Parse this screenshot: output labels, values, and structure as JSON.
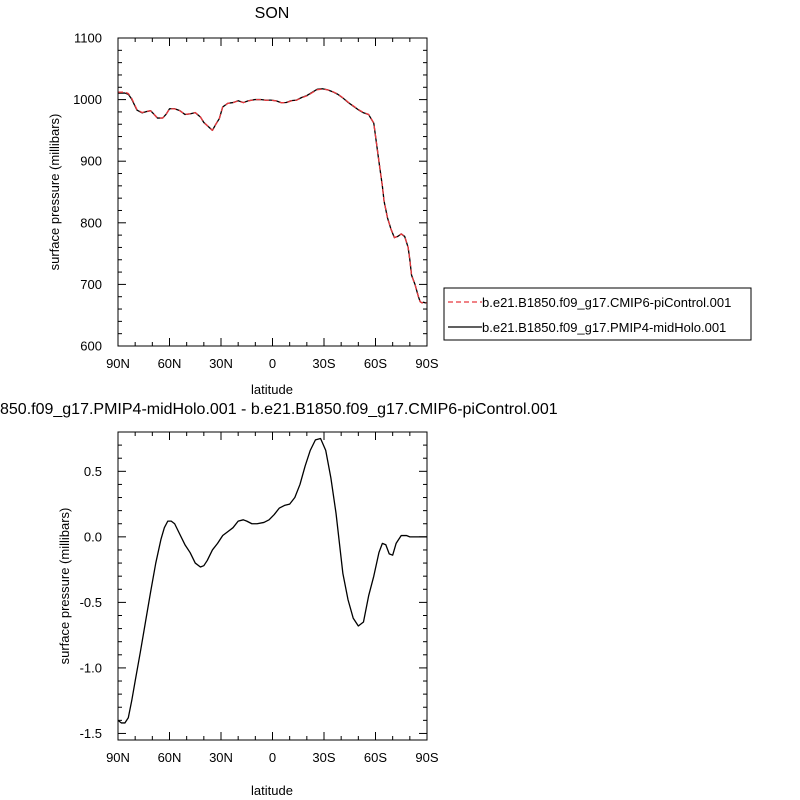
{
  "chart_data": [
    {
      "type": "line",
      "title": "SON",
      "xlabel": "latitude",
      "ylabel": "surface pressure (millibars)",
      "xlim": [
        90,
        -90
      ],
      "ylim": [
        600,
        1100
      ],
      "xticks": [
        90,
        60,
        30,
        0,
        -30,
        -60,
        -90
      ],
      "xtick_labels": [
        "90N",
        "60N",
        "30N",
        "0",
        "30S",
        "60S",
        "90S"
      ],
      "yticks": [
        600,
        700,
        800,
        900,
        1000,
        1100
      ],
      "ytick_labels": [
        "600",
        "700",
        "800",
        "900",
        "1000",
        "1100"
      ],
      "legend": {
        "placement": "right",
        "entries": [
          {
            "label": "b.e21.B1850.f09_g17.CMIP6-piControl.001",
            "color": "#e8383d",
            "style": "dashed"
          },
          {
            "label": "b.e21.B1850.f09_g17.PMIP4-midHolo.001",
            "color": "#000000",
            "style": "solid"
          }
        ]
      },
      "series": [
        {
          "name": "b.e21.B1850.f09_g17.CMIP6-piControl.001",
          "color": "#e8383d",
          "style": "dashed",
          "x": [
            90,
            86,
            84,
            82,
            79,
            76,
            73,
            71,
            69,
            67,
            64,
            62,
            60,
            57,
            54,
            51,
            48,
            45,
            42,
            40,
            38,
            35,
            33,
            31,
            29,
            26,
            23,
            20,
            17,
            14,
            10,
            7,
            4,
            1,
            -2,
            -5,
            -8,
            -11,
            -14,
            -17,
            -20,
            -23,
            -26,
            -29,
            -32,
            -35,
            -38,
            -41,
            -44,
            -47,
            -50,
            -53,
            -56,
            -59,
            -62,
            -64,
            -65,
            -67,
            -69,
            -71,
            -73,
            -75,
            -77,
            -79,
            -80,
            -81,
            -83,
            -84,
            -85,
            -86,
            -87,
            -88,
            -89,
            -90
          ],
          "y": [
            1012,
            1012,
            1010,
            1002,
            984,
            979,
            981,
            982,
            976,
            970,
            970,
            976,
            985,
            985,
            982,
            976,
            977,
            979,
            972,
            963,
            958,
            950,
            960,
            969,
            988,
            994,
            995,
            998,
            995,
            998,
            1000,
            1000,
            999,
            999,
            998,
            995,
            995,
            998,
            999,
            1003,
            1006,
            1011,
            1016,
            1017,
            1016,
            1013,
            1009,
            1003,
            996,
            990,
            984,
            979,
            976,
            962,
            900,
            860,
            835,
            808,
            790,
            776,
            778,
            782,
            778,
            760,
            740,
            715,
            700,
            690,
            680,
            672,
            670,
            671,
            670,
            670
          ]
        },
        {
          "name": "b.e21.B1850.f09_g17.PMIP4-midHolo.001",
          "color": "#000000",
          "style": "solid",
          "x": [
            90,
            86,
            84,
            82,
            79,
            76,
            73,
            71,
            69,
            67,
            64,
            62,
            60,
            57,
            54,
            51,
            48,
            45,
            42,
            40,
            38,
            35,
            33,
            31,
            29,
            26,
            23,
            20,
            17,
            14,
            10,
            7,
            4,
            1,
            -2,
            -5,
            -8,
            -11,
            -14,
            -17,
            -20,
            -23,
            -26,
            -29,
            -32,
            -35,
            -38,
            -41,
            -44,
            -47,
            -50,
            -53,
            -56,
            -59,
            -62,
            -64,
            -65,
            -67,
            -69,
            -71,
            -73,
            -75,
            -77,
            -79,
            -80,
            -81,
            -83,
            -84,
            -85,
            -86,
            -87,
            -88,
            -89,
            -90
          ],
          "y": [
            1010.6,
            1010.6,
            1008.6,
            1000.7,
            983.1,
            978.5,
            980.8,
            982.0,
            976.1,
            970.0,
            970.1,
            976.1,
            985.1,
            985.1,
            982.1,
            975.9,
            976.8,
            978.8,
            971.8,
            962.8,
            957.8,
            950.1,
            960.1,
            969.0,
            988.1,
            994.1,
            995.2,
            998.1,
            995.2,
            998.2,
            1000.2,
            1000.1,
            999.1,
            999.1,
            998.1,
            995.1,
            995.3,
            998.3,
            999.2,
            1003.4,
            1006.5,
            1011.7,
            1016.7,
            1017.6,
            1016.0,
            1012.8,
            1008.7,
            1002.7,
            995.5,
            989.5,
            983.5,
            978.6,
            975.7,
            961.7,
            899.5,
            859.6,
            834.9,
            807.9,
            789.8,
            776.0,
            778.0,
            781.9,
            777.9,
            760.0,
            740.0,
            715.0,
            700.0,
            690.0,
            680.0,
            672.0,
            670.0,
            671.0,
            670.0,
            670.0
          ]
        }
      ]
    },
    {
      "type": "line",
      "title": "850.f09_g17.PMIP4-midHolo.001 - b.e21.B1850.f09_g17.CMIP6-piControl.001",
      "xlabel": "latitude",
      "ylabel": "surface pressure (millibars)",
      "xlim": [
        90,
        -90
      ],
      "ylim": [
        -1.55,
        0.8
      ],
      "xticks": [
        90,
        60,
        30,
        0,
        -30,
        -60,
        -90
      ],
      "xtick_labels": [
        "90N",
        "60N",
        "30N",
        "0",
        "30S",
        "60S",
        "90S"
      ],
      "yticks": [
        -1.5,
        -1.0,
        -0.5,
        0.0,
        0.5
      ],
      "ytick_labels": [
        "-1.5",
        "-1.0",
        "-0.5",
        "0.0",
        "0.5"
      ],
      "series": [
        {
          "color": "#000000",
          "style": "solid",
          "x": [
            90,
            88,
            86,
            84,
            82,
            80,
            77,
            74,
            71,
            68,
            65,
            63,
            61,
            59,
            57,
            54,
            51,
            48,
            45,
            42,
            40,
            38,
            35,
            32,
            29,
            26,
            23,
            20,
            17,
            15,
            12,
            9,
            5,
            2,
            -1,
            -4,
            -7,
            -10,
            -13,
            -16,
            -19,
            -22,
            -25,
            -28,
            -31,
            -34,
            -37,
            -39,
            -41,
            -44,
            -47,
            -50,
            -53,
            -56,
            -59,
            -62,
            -64,
            -66,
            -68,
            -70,
            -72,
            -75,
            -78,
            -80,
            -82,
            -84,
            -86,
            -88,
            -90
          ],
          "y": [
            -1.4,
            -1.42,
            -1.42,
            -1.38,
            -1.25,
            -1.1,
            -0.88,
            -0.65,
            -0.42,
            -0.2,
            -0.02,
            0.07,
            0.12,
            0.12,
            0.1,
            0.02,
            -0.06,
            -0.12,
            -0.2,
            -0.23,
            -0.22,
            -0.18,
            -0.1,
            -0.05,
            0.01,
            0.04,
            0.07,
            0.12,
            0.13,
            0.12,
            0.1,
            0.1,
            0.11,
            0.13,
            0.17,
            0.22,
            0.24,
            0.25,
            0.3,
            0.4,
            0.54,
            0.66,
            0.74,
            0.75,
            0.66,
            0.45,
            0.18,
            -0.05,
            -0.28,
            -0.48,
            -0.62,
            -0.68,
            -0.65,
            -0.45,
            -0.3,
            -0.12,
            -0.05,
            -0.06,
            -0.13,
            -0.14,
            -0.05,
            0.01,
            0.01,
            0.0,
            0.0,
            0.0,
            0.0,
            0.0,
            0.0
          ]
        }
      ]
    }
  ]
}
